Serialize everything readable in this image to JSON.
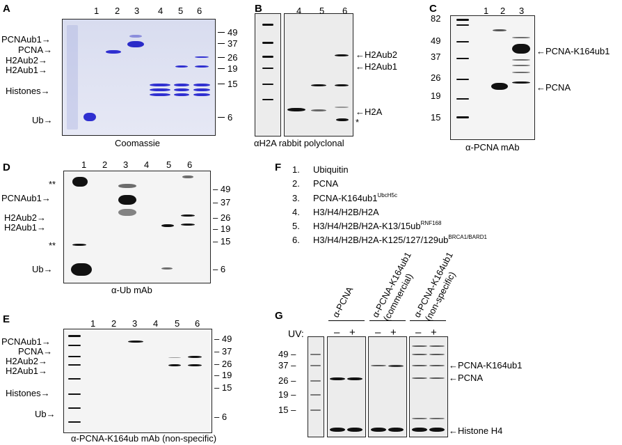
{
  "panels": {
    "A": {
      "letter": "A",
      "lanes": [
        "1",
        "2",
        "3",
        "4",
        "5",
        "6"
      ],
      "left_labels": [
        "PCNAub1",
        "PCNA",
        "H2Aub2",
        "H2Aub1",
        "Histones",
        "Ub"
      ],
      "mw": [
        "49",
        "37",
        "26",
        "19",
        "15",
        "6"
      ],
      "caption": "Coomassie"
    },
    "B": {
      "letter": "B",
      "lanes": [
        "4",
        "5",
        "6"
      ],
      "right_labels": [
        "H2Aub2",
        "H2Aub1",
        "H2A",
        "*"
      ],
      "caption": "αH2A rabbit polyclonal"
    },
    "C": {
      "letter": "C",
      "lanes": [
        "1",
        "2",
        "3"
      ],
      "mw": [
        "82",
        "49",
        "37",
        "26",
        "19",
        "15"
      ],
      "right_labels": [
        "PCNA-K164ub1",
        "PCNA"
      ],
      "caption": "α-PCNA mAb"
    },
    "D": {
      "letter": "D",
      "lanes": [
        "1",
        "2",
        "3",
        "4",
        "5",
        "6"
      ],
      "left_labels": [
        "**",
        "PCNAub1",
        "H2Aub2",
        "H2Aub1",
        "**",
        "Ub"
      ],
      "mw": [
        "49",
        "37",
        "26",
        "19",
        "15",
        "6"
      ],
      "caption": "α-Ub mAb"
    },
    "E": {
      "letter": "E",
      "lanes": [
        "1",
        "2",
        "3",
        "4",
        "5",
        "6"
      ],
      "left_labels": [
        "PCNAub1",
        "PCNA",
        "H2Aub2",
        "H2Aub1",
        "Histones",
        "Ub"
      ],
      "mw": [
        "49",
        "37",
        "26",
        "19",
        "15",
        "6"
      ],
      "caption": "α-PCNA-K164ub mAb (non-specific)"
    },
    "F": {
      "letter": "F",
      "items": [
        {
          "num": "1.",
          "text": "Ubiquitin",
          "sup": ""
        },
        {
          "num": "2.",
          "text": "PCNA",
          "sup": ""
        },
        {
          "num": "3.",
          "text": "PCNA-K164ub1",
          "sup": "UbcH5c"
        },
        {
          "num": "4.",
          "text": "H3/H4/H2B/H2A",
          "sup": ""
        },
        {
          "num": "5.",
          "text": "H3/H4/H2B/H2A-K13/15ub",
          "sup": "RNF168"
        },
        {
          "num": "6.",
          "text": "H3/H4/H2B/H2A-K125/127/129ub",
          "sup": "BRCA1/BARD1"
        }
      ]
    },
    "G": {
      "letter": "G",
      "antibodies": [
        "α-PCNA",
        "α-PCNA-K164ub1",
        "(commercial)",
        "α-PCNA-K164ub1",
        "(non-specific)"
      ],
      "uv_label": "UV:",
      "uv_signs": [
        "–",
        "+",
        "–",
        "+",
        "–",
        "+"
      ],
      "mw": [
        "49",
        "37",
        "26",
        "19",
        "15"
      ],
      "right_labels": [
        "PCNA-K164ub1",
        "PCNA",
        "Histone H4"
      ]
    }
  },
  "arrow": "→",
  "arrow_left": "←"
}
